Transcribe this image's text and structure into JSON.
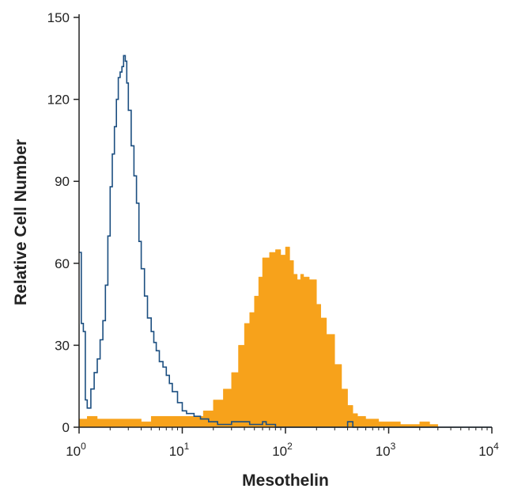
{
  "chart_data": {
    "type": "histogram",
    "xlabel": "Mesothelin",
    "ylabel": "Relative Cell Number",
    "xscale": "log",
    "xlim": [
      1,
      10000
    ],
    "ylim": [
      0,
      150
    ],
    "x_ticks": [
      {
        "value": 1,
        "base": "10",
        "exp": "0"
      },
      {
        "value": 10,
        "base": "10",
        "exp": "1"
      },
      {
        "value": 100,
        "base": "10",
        "exp": "2"
      },
      {
        "value": 1000,
        "base": "10",
        "exp": "3"
      },
      {
        "value": 10000,
        "base": "10",
        "exp": "4"
      }
    ],
    "y_ticks": [
      {
        "value": 0,
        "label": "0"
      },
      {
        "value": 30,
        "label": "30"
      },
      {
        "value": 60,
        "label": "60"
      },
      {
        "value": 90,
        "label": "90"
      },
      {
        "value": 120,
        "label": "120"
      },
      {
        "value": 150,
        "label": "150"
      }
    ],
    "grid": false,
    "series": [
      {
        "style": "filled",
        "color": "#F7A21B",
        "points": [
          [
            1.0,
            3
          ],
          [
            1.2,
            4
          ],
          [
            1.5,
            3
          ],
          [
            2.0,
            3
          ],
          [
            3.0,
            3
          ],
          [
            4.0,
            2
          ],
          [
            5.0,
            4
          ],
          [
            6.0,
            4
          ],
          [
            8.0,
            4
          ],
          [
            10.0,
            4
          ],
          [
            13.0,
            4
          ],
          [
            16.0,
            6
          ],
          [
            20.0,
            10
          ],
          [
            25.0,
            14
          ],
          [
            30.0,
            20
          ],
          [
            35.0,
            30
          ],
          [
            40.0,
            38
          ],
          [
            45.0,
            42
          ],
          [
            50.0,
            48
          ],
          [
            55.0,
            55
          ],
          [
            60.0,
            62
          ],
          [
            70.0,
            64
          ],
          [
            80.0,
            65
          ],
          [
            90.0,
            63
          ],
          [
            100.0,
            66
          ],
          [
            110.0,
            61
          ],
          [
            120.0,
            56
          ],
          [
            130.0,
            54
          ],
          [
            140.0,
            56
          ],
          [
            150.0,
            55
          ],
          [
            170.0,
            54
          ],
          [
            200.0,
            45
          ],
          [
            220.0,
            40
          ],
          [
            250.0,
            34
          ],
          [
            300.0,
            23
          ],
          [
            350.0,
            14
          ],
          [
            400.0,
            8
          ],
          [
            450.0,
            5
          ],
          [
            500.0,
            4
          ],
          [
            600.0,
            3
          ],
          [
            800.0,
            2
          ],
          [
            1000.0,
            2
          ],
          [
            1300.0,
            1
          ],
          [
            1600.0,
            1
          ],
          [
            2000.0,
            2
          ],
          [
            2500.0,
            1
          ],
          [
            3000.0,
            0
          ]
        ]
      },
      {
        "style": "line",
        "color": "#1B4E80",
        "points": [
          [
            1.0,
            64
          ],
          [
            1.05,
            38
          ],
          [
            1.1,
            35
          ],
          [
            1.15,
            10
          ],
          [
            1.2,
            7
          ],
          [
            1.3,
            14
          ],
          [
            1.4,
            20
          ],
          [
            1.5,
            25
          ],
          [
            1.6,
            32
          ],
          [
            1.7,
            39
          ],
          [
            1.8,
            52
          ],
          [
            1.9,
            70
          ],
          [
            2.0,
            88
          ],
          [
            2.1,
            100
          ],
          [
            2.2,
            110
          ],
          [
            2.3,
            120
          ],
          [
            2.4,
            128
          ],
          [
            2.5,
            130
          ],
          [
            2.6,
            132
          ],
          [
            2.7,
            136
          ],
          [
            2.8,
            134
          ],
          [
            2.9,
            126
          ],
          [
            3.0,
            116
          ],
          [
            3.2,
            103
          ],
          [
            3.4,
            92
          ],
          [
            3.6,
            82
          ],
          [
            3.8,
            68
          ],
          [
            4.0,
            58
          ],
          [
            4.3,
            48
          ],
          [
            4.6,
            40
          ],
          [
            5.0,
            35
          ],
          [
            5.3,
            31
          ],
          [
            5.6,
            28
          ],
          [
            6.0,
            24
          ],
          [
            6.5,
            22
          ],
          [
            7.0,
            19
          ],
          [
            7.5,
            16
          ],
          [
            8.0,
            13
          ],
          [
            9.0,
            9
          ],
          [
            10.0,
            6
          ],
          [
            11.0,
            5
          ],
          [
            13.0,
            4
          ],
          [
            15.0,
            3
          ],
          [
            18.0,
            2
          ],
          [
            22.0,
            1
          ],
          [
            30.0,
            2
          ],
          [
            45.0,
            1
          ],
          [
            60.0,
            2
          ],
          [
            65.0,
            1
          ],
          [
            80.0,
            0
          ],
          [
            100.0,
            0
          ],
          [
            200.0,
            0
          ],
          [
            300.0,
            0
          ],
          [
            400.0,
            2
          ],
          [
            450.0,
            0
          ],
          [
            700.0,
            0
          ],
          [
            1000.0,
            0
          ],
          [
            3000.0,
            0
          ],
          [
            10000.0,
            0
          ]
        ]
      }
    ]
  }
}
